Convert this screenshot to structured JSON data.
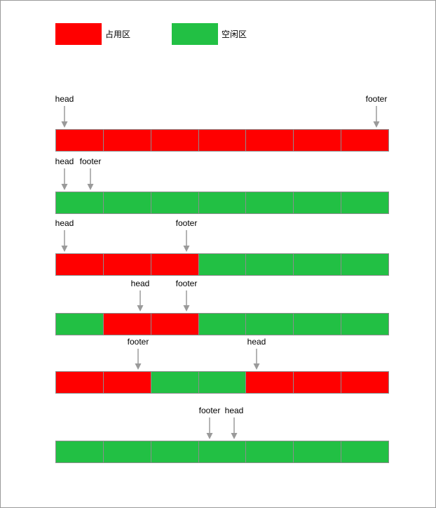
{
  "colors": {
    "occupied": "#ff0000",
    "free": "#22c044",
    "arrow": "#9a9a9a"
  },
  "legend": {
    "occupied_label": "占用区",
    "free_label": "空闲区"
  },
  "rows": [
    {
      "cells": [
        "occupied",
        "occupied",
        "occupied",
        "occupied",
        "occupied",
        "occupied",
        "occupied"
      ],
      "pointers": [
        {
          "label": "head"
        },
        {
          "label": "footer"
        }
      ]
    },
    {
      "cells": [
        "free",
        "free",
        "free",
        "free",
        "free",
        "free",
        "free"
      ],
      "pointers": [
        {
          "label": "head"
        },
        {
          "label": "footer"
        }
      ]
    },
    {
      "cells": [
        "occupied",
        "occupied",
        "occupied",
        "free",
        "free",
        "free",
        "free"
      ],
      "pointers": [
        {
          "label": "head"
        },
        {
          "label": "footer"
        }
      ]
    },
    {
      "cells": [
        "free",
        "occupied",
        "occupied",
        "free",
        "free",
        "free",
        "free"
      ],
      "pointers": [
        {
          "label": "head"
        },
        {
          "label": "footer"
        }
      ]
    },
    {
      "cells": [
        "occupied",
        "occupied",
        "free",
        "free",
        "occupied",
        "occupied",
        "occupied"
      ],
      "pointers": [
        {
          "label": "footer"
        },
        {
          "label": "head"
        }
      ]
    },
    {
      "cells": [
        "free",
        "free",
        "free",
        "free",
        "free",
        "free",
        "free"
      ],
      "pointers": [
        {
          "label": "footer"
        },
        {
          "label": "head"
        }
      ]
    }
  ]
}
